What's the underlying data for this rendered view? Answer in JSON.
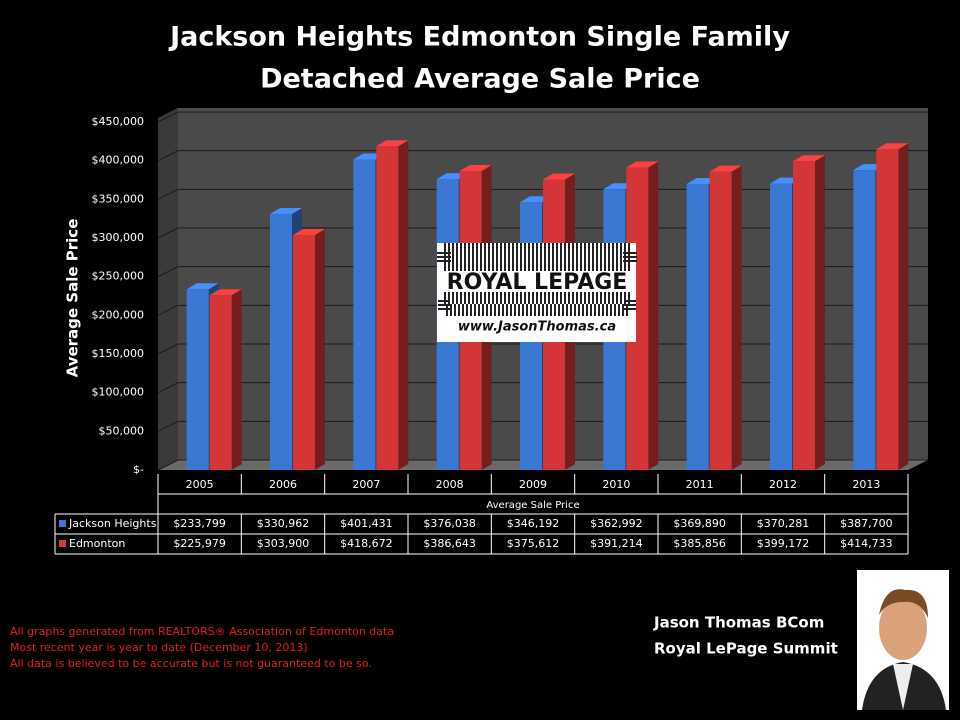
{
  "chart_data": {
    "type": "bar3d",
    "title": [
      "Jackson Heights Edmonton Single Family",
      "Detached Average Sale Price"
    ],
    "y_label": "Average Sale Price",
    "x_label": "Average Sale Price",
    "categories": [
      "2005",
      "2006",
      "2007",
      "2008",
      "2009",
      "2010",
      "2011",
      "2012",
      "2013"
    ],
    "series": [
      {
        "name": "Jackson Heights",
        "color": "#3a78d4",
        "values": [
          233799,
          330962,
          401431,
          376038,
          346192,
          362992,
          369890,
          370281,
          387700
        ],
        "value_labels": [
          "$233,799",
          "$330,962",
          "$401,431",
          "$376,038",
          "$346,192",
          "$362,992",
          "$369,890",
          "$370,281",
          "$387,700"
        ]
      },
      {
        "name": "Edmonton",
        "color": "#d33636",
        "values": [
          225979,
          303900,
          418672,
          386643,
          375612,
          391214,
          385856,
          399172,
          414733
        ],
        "value_labels": [
          "$225,979",
          "$303,900",
          "$418,672",
          "$386,643",
          "$375,612",
          "$391,214",
          "$385,856",
          "$399,172",
          "$414,733"
        ]
      }
    ],
    "ylim": [
      0,
      450000
    ],
    "yticks": [
      {
        "value": 0,
        "label": "$-"
      },
      {
        "value": 50000,
        "label": "$50,000"
      },
      {
        "value": 100000,
        "label": "$100,000"
      },
      {
        "value": 150000,
        "label": "$150,000"
      },
      {
        "value": 200000,
        "label": "$200,000"
      },
      {
        "value": 250000,
        "label": "$250,000"
      },
      {
        "value": 300000,
        "label": "$300,000"
      },
      {
        "value": 350000,
        "label": "$350,000"
      },
      {
        "value": 400000,
        "label": "$400,000"
      },
      {
        "value": 450000,
        "label": "$450,000"
      }
    ],
    "grid": true
  },
  "logo": {
    "brand": "ROYAL LEPAGE",
    "website": "www.JasonThomas.ca"
  },
  "agent": {
    "name": "Jason Thomas BCom",
    "office": "Royal LePage Summit"
  },
  "footnotes": [
    "All graphs generated from REALTORS® Association of Edmonton data",
    "Most recent year is year to date (December 10, 2013)",
    "All data is believed to be accurate but is not guaranteed to be so."
  ]
}
